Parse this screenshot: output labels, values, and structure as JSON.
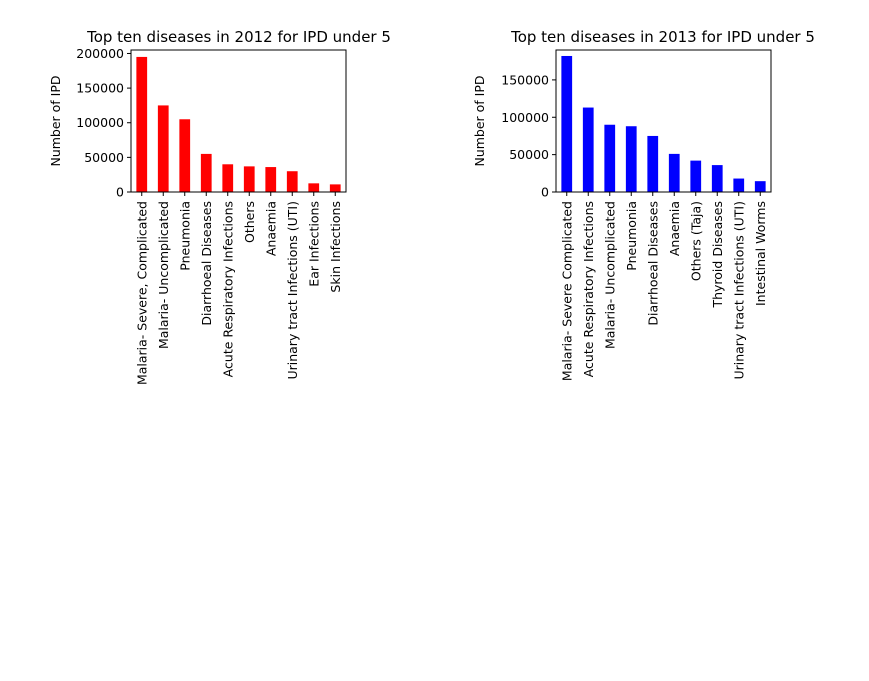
{
  "chart_data": [
    {
      "type": "bar",
      "title": "Top ten diseases in 2012 for IPD under 5",
      "xlabel": "",
      "ylabel": "Number of IPD",
      "ylim": [
        0,
        205000
      ],
      "yticks": [
        0,
        50000,
        100000,
        150000,
        200000
      ],
      "ytick_labels": [
        "0",
        "50000",
        "100000",
        "150000",
        "200000"
      ],
      "color": "#ff0000",
      "categories": [
        "Malaria- Severe, Complicated",
        "Malaria- Uncomplicated",
        "Pneumonia",
        "Diarrhoeal Diseases",
        "Acute Respiratory Infections",
        "Others",
        "Anaemia",
        "Urinary tract Infections (UTI)",
        "Ear Infections",
        "Skin Infections"
      ],
      "values": [
        195000,
        125000,
        105000,
        55000,
        40000,
        37000,
        36000,
        30000,
        12500,
        11000
      ]
    },
    {
      "type": "bar",
      "title": "Top ten diseases in 2013 for IPD under 5",
      "xlabel": "",
      "ylabel": "Number of IPD",
      "ylim": [
        0,
        190000
      ],
      "yticks": [
        0,
        50000,
        100000,
        150000
      ],
      "ytick_labels": [
        "0",
        "50000",
        "100000",
        "150000"
      ],
      "color": "#0000ff",
      "categories": [
        "Malaria- Severe Complicated",
        "Acute Respiratory Infections",
        "Malaria- Uncomplicated",
        "Pneumonia",
        "Diarrhoeal Diseases",
        "Anaemia",
        "Others (Taja)",
        "Thyroid Diseases",
        "Urinary tract Infections (UTI)",
        "Intestinal Worms"
      ],
      "values": [
        182000,
        113000,
        90000,
        88000,
        75000,
        51000,
        42000,
        36000,
        18000,
        14500
      ]
    }
  ]
}
